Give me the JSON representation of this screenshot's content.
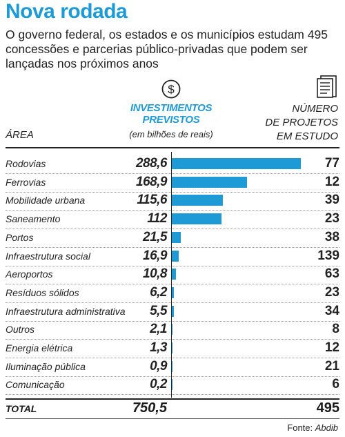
{
  "header": {
    "title": "Nova rodada",
    "subtitle": "O governo federal, os estados e os municípios estudam 495 concessões e parcerias público-privadas que podem ser lançadas nos próximos anos"
  },
  "columns": {
    "invest_line1": "INVESTIMENTOS",
    "invest_line2": "PREVISTOS",
    "invest_unit": "(em bilhões de reais)",
    "area": "ÁREA",
    "projects_line1": "NÚMERO",
    "projects_line2": "DE PROJETOS",
    "projects_line3": "EM ESTUDO"
  },
  "colors": {
    "accent": "#1e9ad6"
  },
  "icons": {
    "invest": "dollar-circle-icon",
    "projects": "document-list-icon"
  },
  "chart_data": {
    "type": "bar",
    "categories": [
      "Rodovias",
      "Ferrovias",
      "Mobilidade urbana",
      "Saneamento",
      "Portos",
      "Infraestrutura social",
      "Aeroportos",
      "Resíduos sólidos",
      "Infraestrutura administrativa",
      "Outros",
      "Energia elétrica",
      "Iluminação pública",
      "Comunicação"
    ],
    "values": [
      288.6,
      168.9,
      115.6,
      112,
      21.5,
      16.9,
      10.8,
      6.2,
      5.5,
      2.1,
      1.3,
      0.9,
      0.2
    ],
    "value_labels": [
      "288,6",
      "168,9",
      "115,6",
      "112",
      "21,5",
      "16,9",
      "10,8",
      "6,2",
      "5,5",
      "2,1",
      "1,3",
      "0,9",
      "0,2"
    ],
    "projects": [
      77,
      12,
      39,
      23,
      38,
      139,
      63,
      23,
      34,
      8,
      12,
      21,
      6
    ],
    "ylim": [
      0,
      288.6
    ]
  },
  "total": {
    "label": "TOTAL",
    "value": "750,5",
    "projects": "495"
  },
  "source": {
    "prefix": "Fonte: ",
    "name": "Abdib"
  }
}
